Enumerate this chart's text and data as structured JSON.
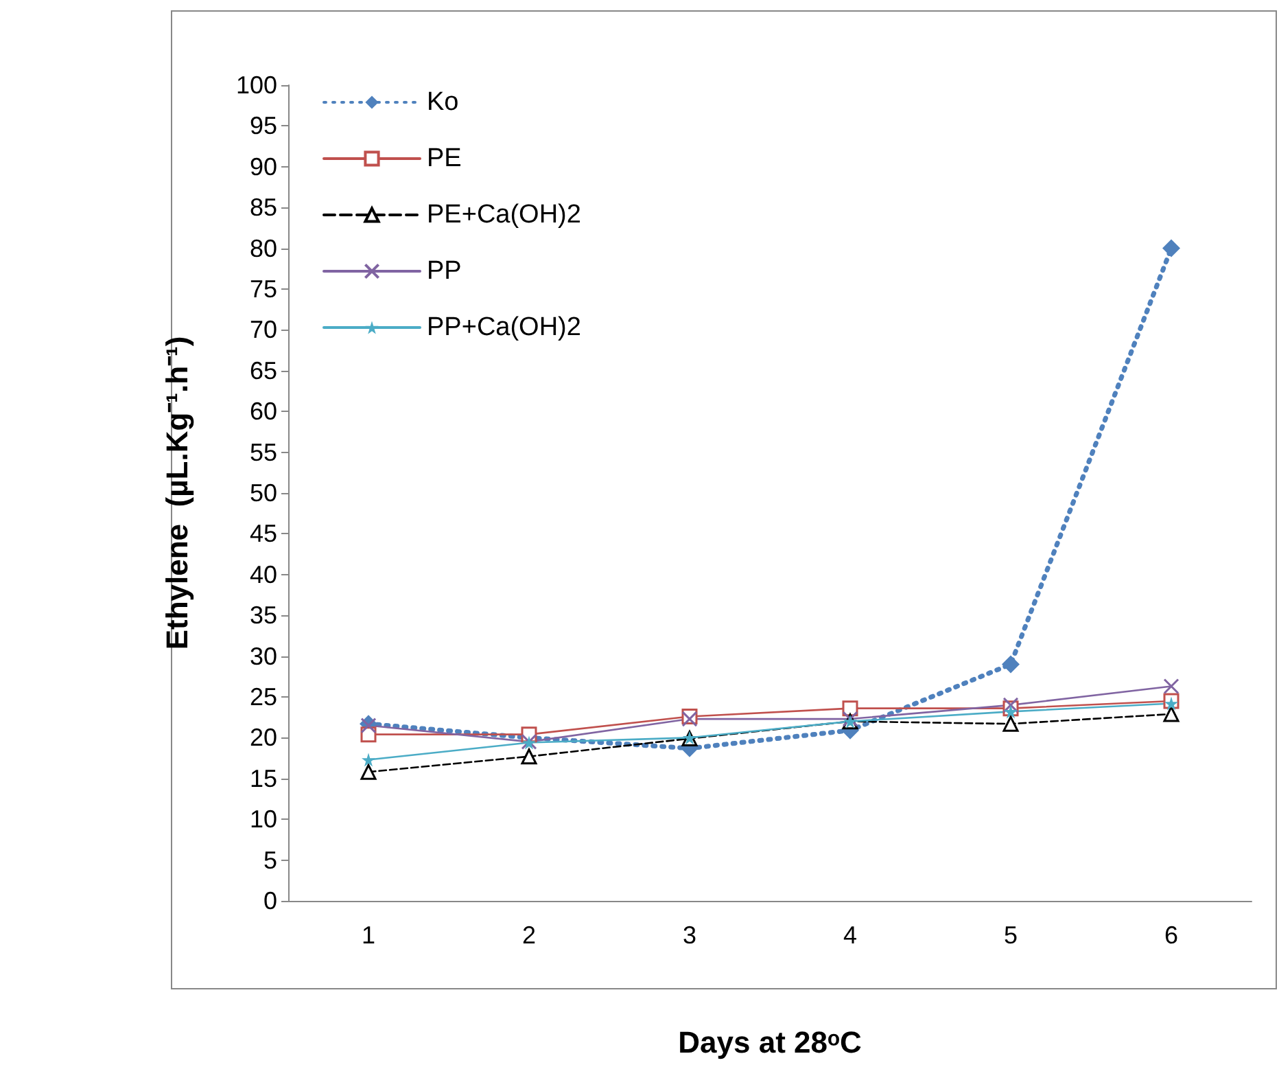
{
  "chart_data": {
    "type": "line",
    "xlabel": "Days at 28ᵒC",
    "ylabel": "Ethylene  (µL.Kg⁻¹.h⁻¹)",
    "categories": [
      "1",
      "2",
      "3",
      "4",
      "5",
      "6"
    ],
    "ylim": [
      0,
      100
    ],
    "yticks": [
      0,
      5,
      10,
      15,
      20,
      25,
      30,
      35,
      40,
      45,
      50,
      55,
      60,
      65,
      70,
      75,
      80,
      85,
      90,
      95,
      100
    ],
    "grid": false,
    "legend": "top left",
    "series": [
      {
        "name": "Ko",
        "color": "#4f81bd",
        "marker": "diamond",
        "line_style": "dotted",
        "values": [
          21.7,
          20,
          18.7,
          20.9,
          29,
          80
        ]
      },
      {
        "name": "PE",
        "color": "#c0504d",
        "marker": "square",
        "line_style": "solid",
        "values": [
          20.4,
          20.4,
          22.6,
          23.6,
          23.6,
          24.5
        ]
      },
      {
        "name": "PE+Ca(OH)2",
        "color": "#000000",
        "marker": "triangle",
        "line_style": "dashed",
        "values": [
          15.8,
          17.7,
          19.9,
          22,
          21.7,
          22.9
        ]
      },
      {
        "name": "PP",
        "color": "#8064a2",
        "marker": "cross",
        "line_style": "solid",
        "values": [
          21.5,
          19.5,
          22.3,
          22.3,
          24,
          26.3
        ]
      },
      {
        "name": "PP+Ca(OH)2",
        "color": "#4bacc6",
        "marker": "star",
        "line_style": "solid",
        "values": [
          17.3,
          19.4,
          20,
          22,
          23.2,
          24.2
        ]
      }
    ]
  }
}
